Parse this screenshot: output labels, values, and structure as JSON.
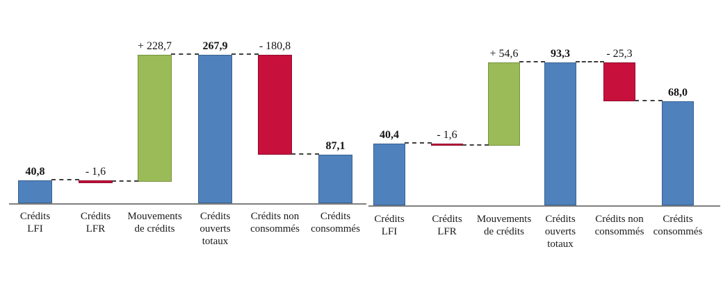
{
  "page": {
    "background": "#ffffff"
  },
  "colors": {
    "blue": "#4F81BD",
    "blue_border": "#36608E",
    "green": "#9BBB59",
    "green_border": "#76923C",
    "red": "#C8103C",
    "red_border": "#8F0B2B",
    "axis": "#7F7F7F",
    "connector": "#3D3D3D",
    "text": "#141414"
  },
  "chart_data": [
    {
      "type": "bar",
      "subtype": "waterfall",
      "title": "",
      "grid": false,
      "legend": false,
      "ylim": [
        0,
        268
      ],
      "categories": [
        "Crédits\nLFI",
        "Crédits\nLFR",
        "Mouvements\nde crédits",
        "Crédits\nouverts\ntotaux",
        "Crédits non\nconsommés",
        "Crédits\nconsommés"
      ],
      "steps": [
        {
          "category": "Crédits LFI",
          "label": "40,8",
          "value": 40.8,
          "kind": "absolute",
          "color": "blue"
        },
        {
          "category": "Crédits LFR",
          "label": "- 1,6",
          "value": -1.6,
          "kind": "delta",
          "color": "red"
        },
        {
          "category": "Mouvements de crédits",
          "label": "+ 228,7",
          "value": 228.7,
          "kind": "delta",
          "color": "green"
        },
        {
          "category": "Crédits ouverts totaux",
          "label": "267,9",
          "value": 267.9,
          "kind": "total",
          "color": "blue"
        },
        {
          "category": "Crédits non consommés",
          "label": "- 180,8",
          "value": -180.8,
          "kind": "delta",
          "color": "red"
        },
        {
          "category": "Crédits consommés",
          "label": "87,1",
          "value": 87.1,
          "kind": "total",
          "color": "blue"
        }
      ]
    },
    {
      "type": "bar",
      "subtype": "waterfall",
      "title": "",
      "grid": false,
      "legend": false,
      "ylim": [
        0,
        94
      ],
      "categories": [
        "Crédits\nLFI",
        "Crédits\nLFR",
        "Mouvements\nde crédits",
        "Crédits\nouverts\ntotaux",
        "Crédits non\nconsommés",
        "Crédits\nconsommés"
      ],
      "steps": [
        {
          "category": "Crédits LFI",
          "label": "40,4",
          "value": 40.4,
          "kind": "absolute",
          "color": "blue"
        },
        {
          "category": "Crédits LFR",
          "label": "- 1,6",
          "value": -1.6,
          "kind": "delta",
          "color": "red"
        },
        {
          "category": "Mouvements de crédits",
          "label": "+ 54,6",
          "value": 54.6,
          "kind": "delta",
          "color": "green"
        },
        {
          "category": "Crédits ouverts totaux",
          "label": "93,3",
          "value": 93.3,
          "kind": "total",
          "color": "blue"
        },
        {
          "category": "Crédits non consommés",
          "label": "- 25,3",
          "value": -25.3,
          "kind": "delta",
          "color": "red"
        },
        {
          "category": "Crédits consommés",
          "label": "68,0",
          "value": 68.0,
          "kind": "total",
          "color": "blue"
        }
      ]
    }
  ]
}
